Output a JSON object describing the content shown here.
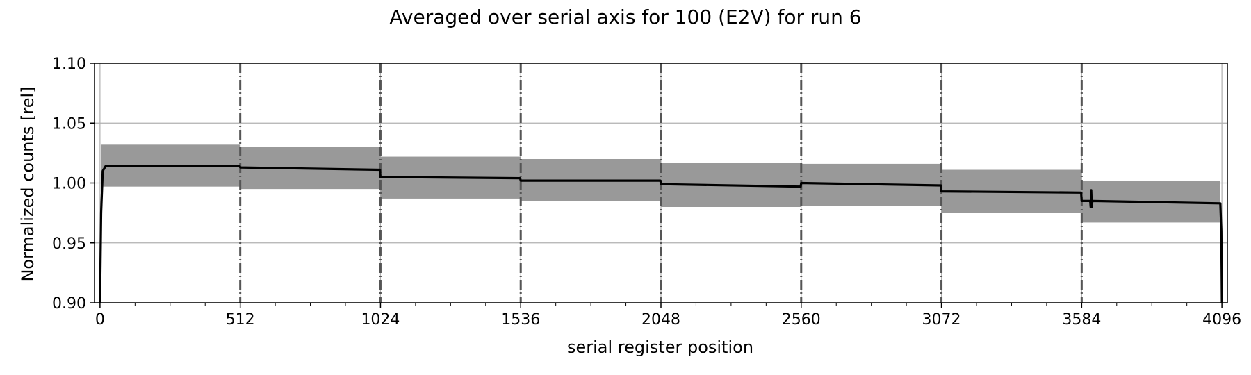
{
  "chart_data": {
    "type": "line",
    "title": "Averaged over serial axis for 100 (E2V) for run 6",
    "xlabel": "serial register position",
    "ylabel": "Normalized counts [rel]",
    "xlim": [
      -20,
      4116
    ],
    "ylim": [
      0.9,
      1.1
    ],
    "xticks": [
      0,
      512,
      1024,
      1536,
      2048,
      2560,
      3072,
      3584,
      4096
    ],
    "xtick_labels": [
      "0",
      "512",
      "1024",
      "1536",
      "2048",
      "2560",
      "3072",
      "3584",
      "4096"
    ],
    "yticks": [
      0.9,
      0.95,
      1.0,
      1.05,
      1.1
    ],
    "ytick_labels": [
      "0.90",
      "0.95",
      "1.00",
      "1.05",
      "1.10"
    ],
    "grid": true,
    "segment_boundaries": [
      512,
      1024,
      1536,
      2048,
      2560,
      3072,
      3584
    ],
    "series": [
      {
        "type": "line",
        "color": "#000000",
        "x": [
          0,
          4,
          10,
          20,
          510,
          512,
          1022,
          1024,
          1534,
          1536,
          2046,
          2048,
          2558,
          2560,
          3070,
          3072,
          3582,
          3584,
          3615,
          3617,
          3619,
          3621,
          3623,
          3625,
          4090,
          4094,
          4096
        ],
        "y": [
          0.9,
          0.975,
          1.01,
          1.014,
          1.014,
          1.013,
          1.011,
          1.005,
          1.004,
          1.002,
          1.002,
          0.999,
          0.997,
          1.0,
          0.998,
          0.993,
          0.992,
          0.985,
          0.985,
          0.98,
          0.994,
          0.98,
          0.985,
          0.985,
          0.983,
          0.96,
          0.9
        ]
      }
    ],
    "error_band": {
      "color": "#999999",
      "segments": [
        {
          "x": [
            4,
            512
          ],
          "y_low": 0.997,
          "y_high": 1.032
        },
        {
          "x": [
            512,
            1024
          ],
          "y_low": 0.995,
          "y_high": 1.03
        },
        {
          "x": [
            1024,
            1536
          ],
          "y_low": 0.987,
          "y_high": 1.022
        },
        {
          "x": [
            1536,
            2048
          ],
          "y_low": 0.985,
          "y_high": 1.02
        },
        {
          "x": [
            2048,
            2560
          ],
          "y_low": 0.98,
          "y_high": 1.017
        },
        {
          "x": [
            2560,
            3072
          ],
          "y_low": 0.981,
          "y_high": 1.016
        },
        {
          "x": [
            3072,
            3584
          ],
          "y_low": 0.975,
          "y_high": 1.011
        },
        {
          "x": [
            3584,
            4090
          ],
          "y_low": 0.967,
          "y_high": 1.002
        }
      ]
    }
  }
}
